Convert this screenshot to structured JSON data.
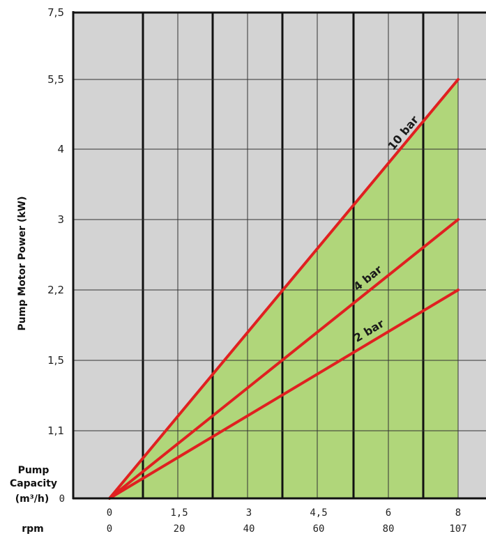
{
  "chart_data": {
    "type": "line",
    "ylabel": "Pump Motor Power (kW)",
    "x_title_lines": [
      "Pump",
      "Capacity",
      "(m³/h)"
    ],
    "rpm_label": "rpm",
    "x_ticks": [
      "0",
      "1,5",
      "3",
      "4,5",
      "6",
      "8"
    ],
    "rpm_ticks": [
      "0",
      "20",
      "40",
      "60",
      "80",
      "107"
    ],
    "y_ticks": [
      "0",
      "1,1",
      "1,5",
      "2,2",
      "3",
      "4",
      "5,5",
      "7,5"
    ],
    "x_range": [
      0,
      8
    ],
    "series": [
      {
        "name": "10 bar",
        "x": [
          0,
          8
        ],
        "y": [
          0,
          5.5
        ]
      },
      {
        "name": "4 bar",
        "x": [
          0,
          8
        ],
        "y": [
          0,
          3
        ]
      },
      {
        "name": "2 bar",
        "x": [
          0,
          8
        ],
        "y": [
          0,
          2.2
        ]
      }
    ],
    "grid": true,
    "colors": {
      "plot_bg": "#d3d3d3",
      "area_fill": "#b0d67a",
      "line": "#e02020",
      "grid": "#111111"
    }
  }
}
